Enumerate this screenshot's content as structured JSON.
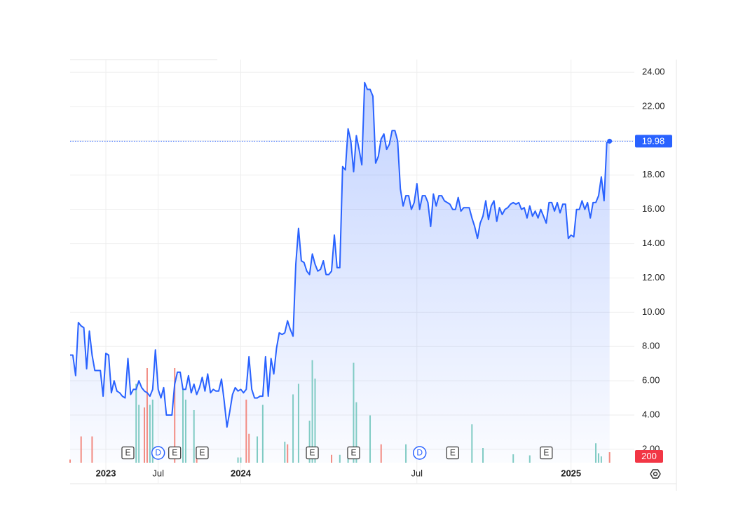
{
  "chart_data": {
    "type": "line",
    "color": "#2962ff",
    "values": [
      7.5,
      7.5,
      6.3,
      9.4,
      9.2,
      9.1,
      6.7,
      8.9,
      7.5,
      6.6,
      6.6,
      6.6,
      5.1,
      7.6,
      7.5,
      5.3,
      6.0,
      5.4,
      5.3,
      5.1,
      5.0,
      7.3,
      5.2,
      5.5,
      5.5,
      6.0,
      5.6,
      5.4,
      5.3,
      5.1,
      5.5,
      7.8,
      5.5,
      5.0,
      5.6,
      4.0,
      4.0,
      4.0,
      5.8,
      6.5,
      6.5,
      5.5,
      5.5,
      6.3,
      5.3,
      5.8,
      5.2,
      5.6,
      6.2,
      5.4,
      6.4,
      5.3,
      5.5,
      5.4,
      5.4,
      6.1,
      4.8,
      3.3,
      4.2,
      5.2,
      5.6,
      5.4,
      5.5,
      5.3,
      5.5,
      7.4,
      5.5,
      5.0,
      5.0,
      5.1,
      5.1,
      7.4,
      5.1,
      7.3,
      6.4,
      7.9,
      8.8,
      8.7,
      8.8,
      9.5,
      9.0,
      8.6,
      12.8,
      14.9,
      13.0,
      12.9,
      12.4,
      12.2,
      13.4,
      12.8,
      12.4,
      12.5,
      13.0,
      12.2,
      12.2,
      12.4,
      14.5,
      12.6,
      12.6,
      18.5,
      18.3,
      20.7,
      20.0,
      18.2,
      20.3,
      19.5,
      18.6,
      23.4,
      23.0,
      23.0,
      22.6,
      18.7,
      19.1,
      20.1,
      20.4,
      19.5,
      19.8,
      20.6,
      20.6,
      20.0,
      17.2,
      16.2,
      16.8,
      16.8,
      16.0,
      16.4,
      17.5,
      16.0,
      16.8,
      16.8,
      16.4,
      15.0,
      16.9,
      16.2,
      16.8,
      16.8,
      16.5,
      16.4,
      16.3,
      16.0,
      16.0,
      16.7,
      15.9,
      16.1,
      16.1,
      16.1,
      15.5,
      15.0,
      14.3,
      15.2,
      15.6,
      16.5,
      15.4,
      16.2,
      16.5,
      15.3,
      16.1,
      15.7,
      16.0,
      16.1,
      16.3,
      16.4,
      16.3,
      16.4,
      16.0,
      16.1,
      15.5,
      16.2,
      15.6,
      15.9,
      15.5,
      16.0,
      15.6,
      15.2,
      16.4,
      16.4,
      15.9,
      16.4,
      15.8,
      16.3,
      16.3,
      14.3,
      14.5,
      14.4,
      16.0,
      16.0,
      16.5,
      16.0,
      16.4,
      15.5,
      16.4,
      16.4,
      16.8,
      17.9,
      16.5,
      19.9,
      19.98
    ],
    "xlim": [
      0,
      205
    ],
    "xticks": [
      {
        "value": 13,
        "label": "2023"
      },
      {
        "value": 32,
        "label": "Jul"
      },
      {
        "value": 62,
        "label": "2024"
      },
      {
        "value": 126,
        "label": "Jul"
      },
      {
        "value": 182,
        "label": "2025"
      }
    ],
    "ylim": [
      1.22,
      24.74
    ],
    "yticks": [
      {
        "value": 2,
        "label": "2.00"
      },
      {
        "value": 4,
        "label": "4.00"
      },
      {
        "value": 6,
        "label": "6.00"
      },
      {
        "value": 8,
        "label": "8.00"
      },
      {
        "value": 10,
        "label": "10.00"
      },
      {
        "value": 12,
        "label": "12.00"
      },
      {
        "value": 14,
        "label": "14.00"
      },
      {
        "value": 16,
        "label": "16.00"
      },
      {
        "value": 18,
        "label": "18.00"
      },
      {
        "value": 20,
        "label": "20.00"
      },
      {
        "value": 22,
        "label": "22.00"
      },
      {
        "value": 24,
        "label": "24.00"
      }
    ],
    "grid": true,
    "volume": {
      "vlim": [
        0,
        2000
      ],
      "x": [
        0,
        4,
        8,
        24,
        25,
        27,
        28,
        29,
        30,
        38,
        41,
        42,
        45,
        46,
        61,
        62,
        64,
        65,
        68,
        70,
        78,
        79,
        81,
        83,
        87,
        88,
        89,
        95,
        98,
        101,
        103,
        104,
        109,
        113,
        122,
        146,
        150,
        161,
        167,
        191,
        192,
        193,
        196
      ],
      "values": [
        60,
        500,
        500,
        1500,
        1100,
        1050,
        1800,
        1100,
        1200,
        1800,
        1400,
        1200,
        1000,
        300,
        100,
        100,
        1200,
        550,
        500,
        1100,
        400,
        350,
        1300,
        1500,
        800,
        1950,
        1600,
        150,
        150,
        200,
        1900,
        1150,
        900,
        350,
        350,
        730,
        280,
        160,
        140,
        370,
        180,
        120,
        200
      ],
      "colors": [
        "#f28b82",
        "#f28b82",
        "#f28b82",
        "#80cbc4",
        "#80cbc4",
        "#f28b82",
        "#f28b82",
        "#80cbc4",
        "#80cbc4",
        "#f28b82",
        "#80cbc4",
        "#80cbc4",
        "#80cbc4",
        "#f28b82",
        "#80cbc4",
        "#80cbc4",
        "#f28b82",
        "#f28b82",
        "#80cbc4",
        "#80cbc4",
        "#80cbc4",
        "#f28b82",
        "#80cbc4",
        "#80cbc4",
        "#80cbc4",
        "#80cbc4",
        "#80cbc4",
        "#f28b82",
        "#80cbc4",
        "#80cbc4",
        "#80cbc4",
        "#80cbc4",
        "#80cbc4",
        "#f28b82",
        "#80cbc4",
        "#80cbc4",
        "#80cbc4",
        "#80cbc4",
        "#80cbc4",
        "#80cbc4",
        "#80cbc4",
        "#80cbc4",
        "#f28b82"
      ]
    },
    "events": {
      "x": [
        21,
        32,
        38,
        48,
        88,
        103,
        127,
        139,
        173
      ],
      "labels": [
        "E",
        "D",
        "E",
        "E",
        "E",
        "E",
        "D",
        "E",
        "E"
      ]
    }
  }
}
